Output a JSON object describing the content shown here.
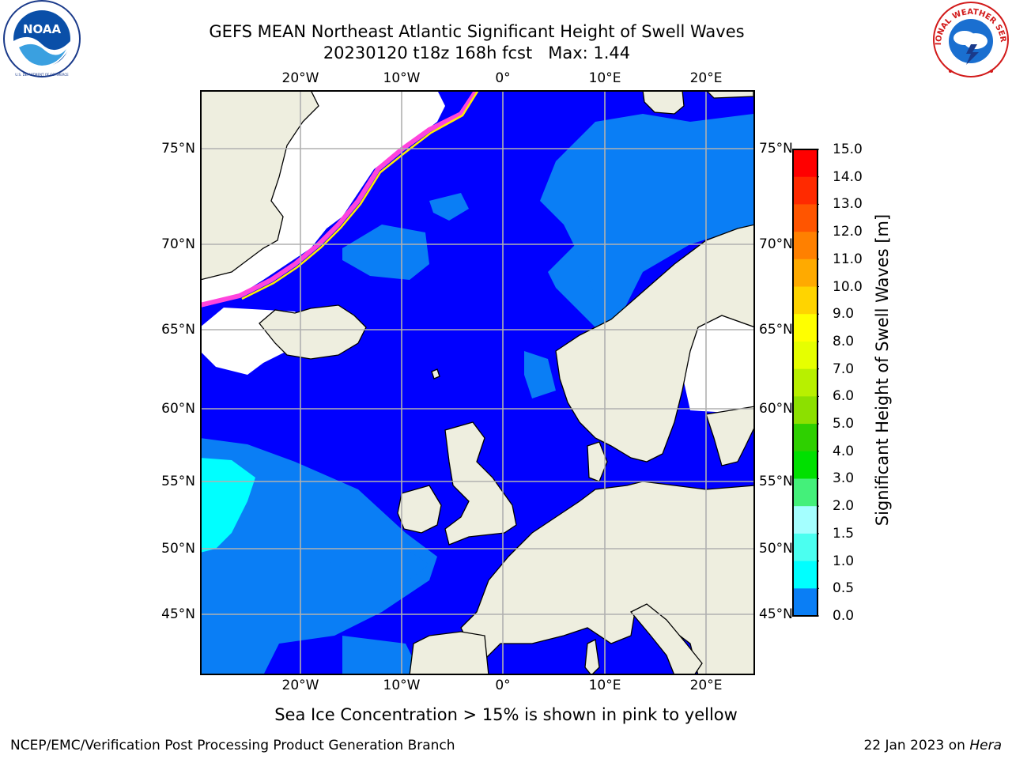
{
  "header": {
    "title_line1": "GEFS MEAN Northeast Atlantic Significant Height of Swell Waves",
    "title_line2": "20230120 t18z 168h fcst   Max: 1.44"
  },
  "logos": {
    "left": {
      "name": "noaa-logo",
      "text": "NOAA",
      "ring_text": "NATIONAL OCEANIC AND ATMOSPHERIC ADMINISTRATION · U.S. DEPARTMENT OF COMMERCE"
    },
    "right": {
      "name": "nws-logo",
      "ring_text": "NATIONAL WEATHER SERVICE"
    }
  },
  "map": {
    "lon_ticks": [
      "20°W",
      "10°W",
      "0°",
      "10°E",
      "20°E"
    ],
    "lat_ticks": [
      "75°N",
      "70°N",
      "65°N",
      "60°N",
      "55°N",
      "50°N",
      "45°N"
    ],
    "colors": {
      "land": "#eeeedf",
      "ice_free_white": "#ffffff",
      "sea_0_0.5": "#0000ff",
      "sea_0.5_1.0": "#0a7ef5",
      "sea_1.0_1.5": "#00ffff",
      "grid": "#b0b0b0",
      "ice_pink": "#ff44dd",
      "ice_yellow": "#ffee00"
    }
  },
  "colorbar": {
    "label": "Significant Height of Swell Waves [m]",
    "ticks": [
      "15.0",
      "14.0",
      "13.0",
      "12.0",
      "11.0",
      "10.0",
      "9.0",
      "8.0",
      "7.0",
      "6.0",
      "5.0",
      "4.0",
      "3.0",
      "2.0",
      "1.5",
      "1.0",
      "0.5",
      "0.0"
    ],
    "bins_top_to_bottom": [
      "#ff0000",
      "#ff2a00",
      "#ff5500",
      "#ff8000",
      "#ffaa00",
      "#ffd400",
      "#ffff00",
      "#e6ff00",
      "#b8f000",
      "#8ce000",
      "#2ed000",
      "#00e000",
      "#44f07a",
      "#a4ffff",
      "#4bfff0",
      "#00ffff",
      "#0a7ef5",
      "#0000ff"
    ]
  },
  "caption": "Sea Ice Concentration > 15% is shown in pink to yellow",
  "footer": {
    "left": "NCEP/EMC/Verification Post Processing Product Generation Branch",
    "right_prefix": "22 Jan 2023 on ",
    "right_machine": "Hera"
  }
}
